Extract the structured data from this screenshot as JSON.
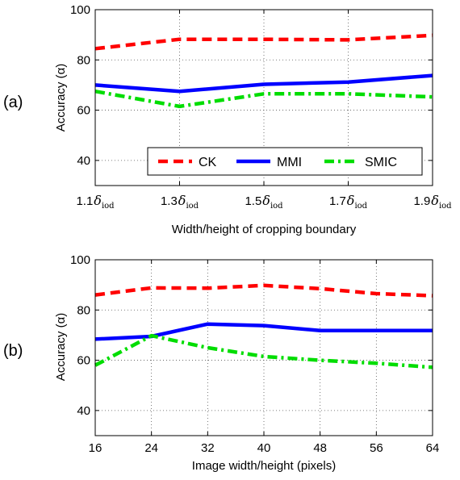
{
  "chart_data": [
    {
      "type": "line",
      "panel_label": "(a)",
      "xlabel": "Width/height of cropping boundary",
      "ylabel": "Accuracy (α)",
      "x": [
        1.1,
        1.3,
        1.5,
        1.7,
        1.9
      ],
      "x_tick_numbers": [
        "1.1",
        "1.3",
        "1.5",
        "1.7",
        "1.9"
      ],
      "x_tick_symbol": "δ",
      "x_tick_subscript": "iod",
      "xlim": [
        1.1,
        1.9
      ],
      "ylim": [
        30,
        100
      ],
      "y_ticks": [
        "40",
        "60",
        "80",
        "100"
      ],
      "grid": true,
      "legend": {
        "placement": "lower-right",
        "orientation": "horizontal"
      },
      "series": [
        {
          "name": "CK",
          "color": "#ff0000",
          "style": "dashed",
          "values": [
            84.5,
            88.2,
            88.2,
            88.0,
            89.8
          ]
        },
        {
          "name": "MMI",
          "color": "#0000ff",
          "style": "solid",
          "values": [
            70.0,
            67.5,
            70.3,
            71.2,
            73.8
          ]
        },
        {
          "name": "SMIC",
          "color": "#00dd00",
          "style": "dashdot",
          "values": [
            67.5,
            61.5,
            66.5,
            66.5,
            65.3
          ]
        }
      ]
    },
    {
      "type": "line",
      "panel_label": "(b)",
      "xlabel": "Image width/height (pixels)",
      "ylabel": "Accuracy (α)",
      "x": [
        16,
        24,
        32,
        40,
        48,
        56,
        64
      ],
      "x_ticks": [
        "16",
        "24",
        "32",
        "40",
        "48",
        "56",
        "64"
      ],
      "xlim": [
        16,
        64
      ],
      "ylim": [
        30,
        100
      ],
      "y_ticks": [
        "40",
        "60",
        "80",
        "100"
      ],
      "grid": true,
      "series": [
        {
          "name": "CK",
          "color": "#ff0000",
          "style": "dashed",
          "values": [
            86.0,
            88.8,
            88.7,
            89.8,
            88.5,
            86.5,
            85.7
          ]
        },
        {
          "name": "MMI",
          "color": "#0000ff",
          "style": "solid",
          "values": [
            68.4,
            69.5,
            74.4,
            73.8,
            71.8,
            71.8,
            71.8
          ]
        },
        {
          "name": "SMIC",
          "color": "#00dd00",
          "style": "dashdot",
          "values": [
            58.0,
            69.8,
            65.0,
            61.5,
            60.0,
            58.8,
            57.2
          ]
        }
      ]
    }
  ]
}
